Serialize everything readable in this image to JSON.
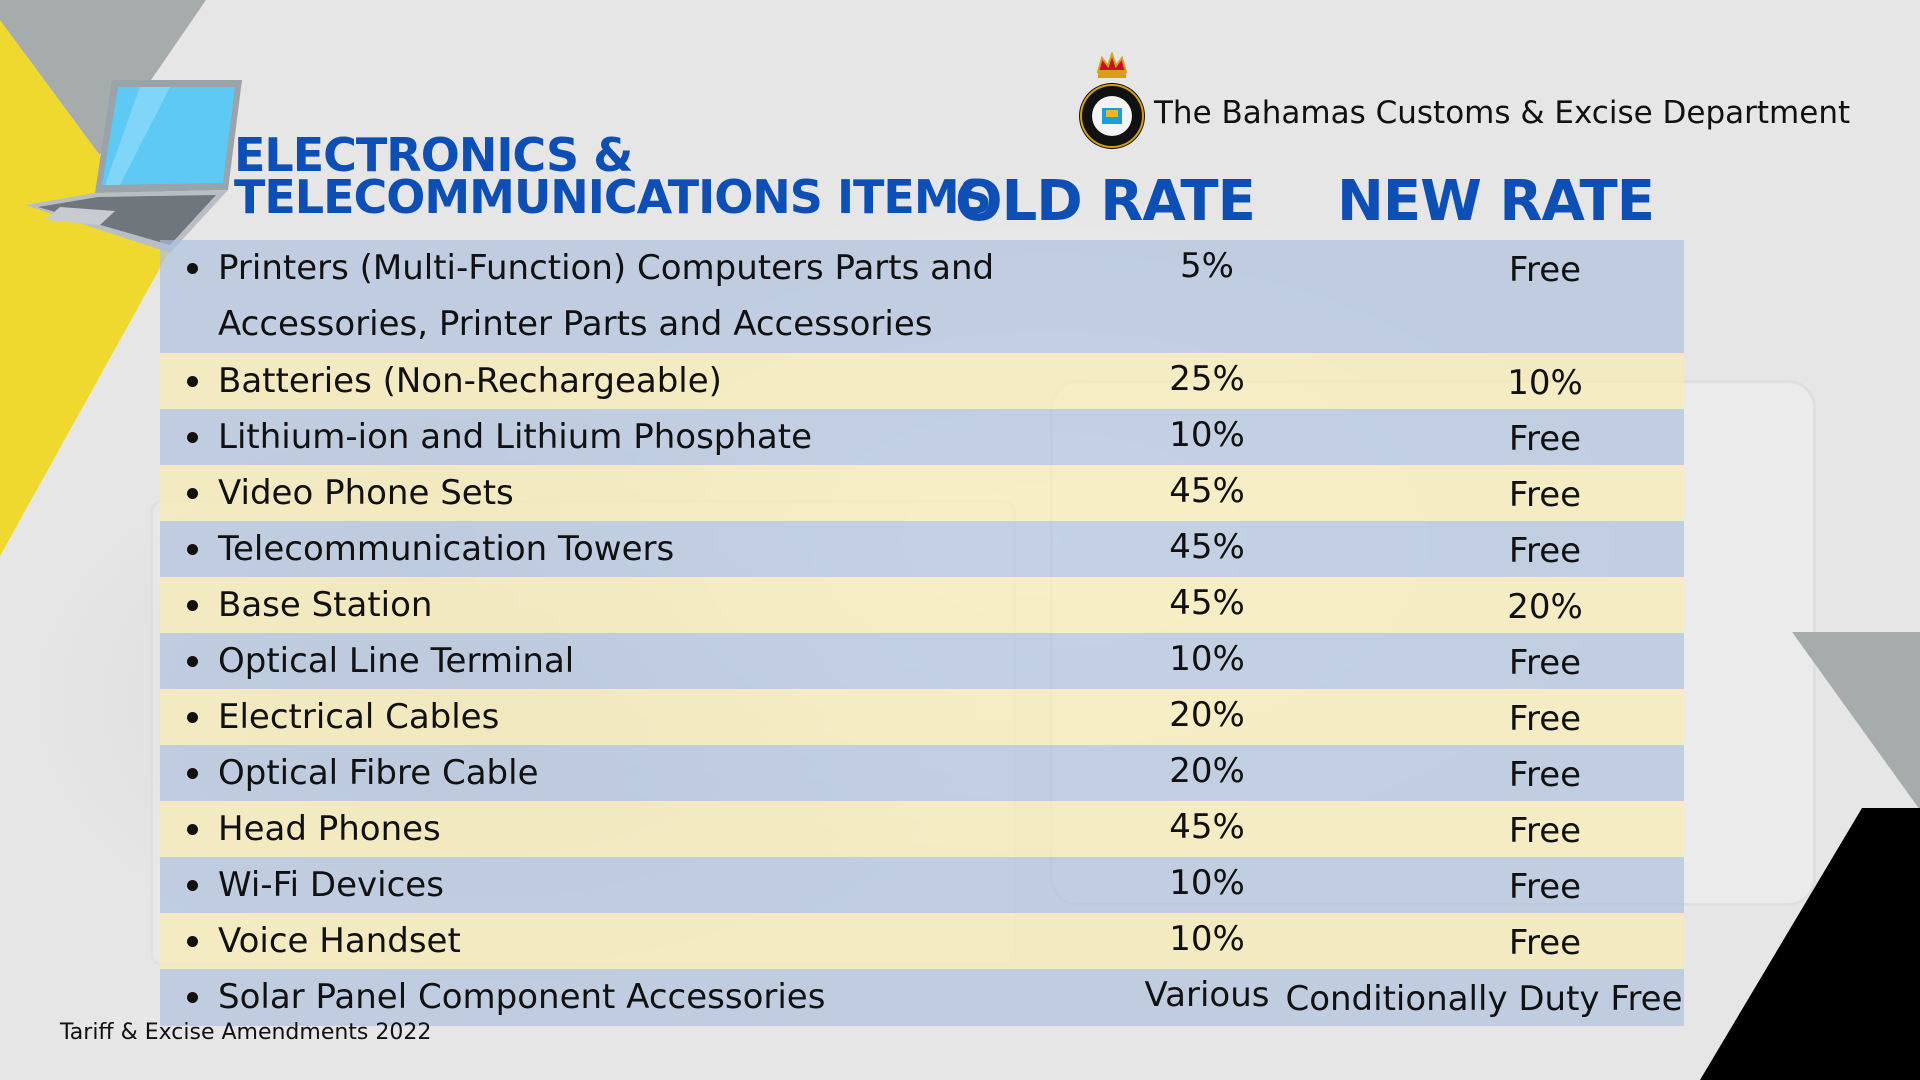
{
  "header": {
    "title_line1": "ELECTRONICS &",
    "title_line2": "TELECOMMUNICATIONS ITEMS",
    "old_rate_label": "OLD RATE",
    "new_rate_label": "NEW RATE",
    "department": "The Bahamas Customs & Excise Department",
    "seal_text": "THE BAHAMAS CUSTOMS"
  },
  "rows": [
    {
      "item": "Printers (Multi-Function) Computers Parts and",
      "item_line2": "Accessories, Printer Parts and Accessories",
      "old": "5%",
      "new": "Free"
    },
    {
      "item": "Batteries (Non-Rechargeable)",
      "old": "25%",
      "new": "10%"
    },
    {
      "item": "Lithium-ion and Lithium Phosphate",
      "old": "10%",
      "new": "Free"
    },
    {
      "item": "Video Phone Sets",
      "old": "45%",
      "new": "Free"
    },
    {
      "item": "Telecommunication Towers",
      "old": "45%",
      "new": "Free"
    },
    {
      "item": "Base Station",
      "old": "45%",
      "new": "20%"
    },
    {
      "item": "Optical Line Terminal",
      "old": "10%",
      "new": "Free"
    },
    {
      "item": "Electrical Cables",
      "old": "20%",
      "new": "Free"
    },
    {
      "item": "Optical Fibre Cable",
      "old": "20%",
      "new": "Free"
    },
    {
      "item": "Head Phones",
      "old": "45%",
      "new": "Free"
    },
    {
      "item": "Wi-Fi Devices",
      "old": "10%",
      "new": "Free"
    },
    {
      "item": "Voice Handset",
      "old": "10%",
      "new": "Free"
    },
    {
      "item": "Solar Panel Component Accessories",
      "old": "Various",
      "new": "Conditionally Duty Free"
    }
  ],
  "footer": "Tariff & Excise Amendments 2022",
  "colors": {
    "title_blue": "#0d4fb4",
    "row_blue": "#acc0de",
    "row_yellow": "#f8ecb4",
    "accent_yellow": "#f0d92e",
    "accent_gray": "#a6abab",
    "accent_black": "#000000"
  },
  "icons": [
    "laptop-icon",
    "customs-seal-icon"
  ]
}
